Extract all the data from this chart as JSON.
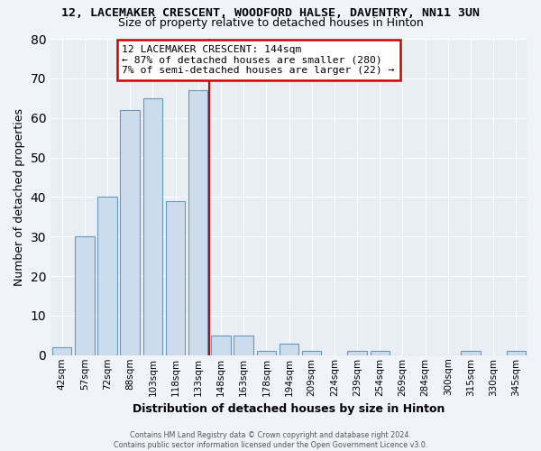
{
  "title1": "12, LACEMAKER CRESCENT, WOODFORD HALSE, DAVENTRY, NN11 3UN",
  "title2": "Size of property relative to detached houses in Hinton",
  "xlabel": "Distribution of detached houses by size in Hinton",
  "ylabel": "Number of detached properties",
  "categories": [
    "42sqm",
    "57sqm",
    "72sqm",
    "88sqm",
    "103sqm",
    "118sqm",
    "133sqm",
    "148sqm",
    "163sqm",
    "178sqm",
    "194sqm",
    "209sqm",
    "224sqm",
    "239sqm",
    "254sqm",
    "269sqm",
    "284sqm",
    "300sqm",
    "315sqm",
    "330sqm",
    "345sqm"
  ],
  "values": [
    2,
    30,
    40,
    62,
    65,
    39,
    67,
    5,
    5,
    1,
    3,
    1,
    0,
    1,
    1,
    0,
    0,
    0,
    1,
    0,
    1
  ],
  "bar_color": "#ccdcec",
  "bar_edge_color": "#6699bb",
  "bar_edge_width": 0.8,
  "redline_index": 7,
  "ylim": [
    0,
    80
  ],
  "yticks": [
    0,
    10,
    20,
    30,
    40,
    50,
    60,
    70,
    80
  ],
  "bg_color": "#f0f4f8",
  "plot_bg_color": "#e8eef4",
  "grid_color": "#ffffff",
  "annotation_title": "12 LACEMAKER CRESCENT: 144sqm",
  "annotation_line1": "← 87% of detached houses are smaller (280)",
  "annotation_line2": "7% of semi-detached houses are larger (22) →",
  "annotation_box_color": "#ffffff",
  "annotation_box_edge": "#cc0000",
  "redline_color": "#cc0000",
  "footer1": "Contains HM Land Registry data © Crown copyright and database right 2024.",
  "footer2": "Contains public sector information licensed under the Open Government Licence v3.0."
}
